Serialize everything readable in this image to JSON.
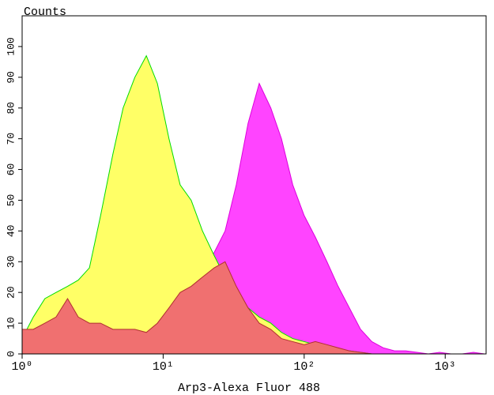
{
  "chart_data": {
    "type": "area",
    "ylabel": "Counts",
    "xlabel": "Arp3-Alexa Fluor 488",
    "xscale": "log",
    "xlim": [
      1,
      1950
    ],
    "ylim": [
      0,
      110
    ],
    "xticks": [
      {
        "value": 1,
        "label": "10⁰"
      },
      {
        "value": 10,
        "label": "10¹"
      },
      {
        "value": 100,
        "label": "10²"
      },
      {
        "value": 1000,
        "label": "10³"
      }
    ],
    "yticks": [
      0,
      10,
      20,
      30,
      40,
      50,
      60,
      70,
      80,
      90,
      100
    ],
    "x": [
      1,
      1.2,
      1.45,
      1.74,
      2.1,
      2.5,
      3,
      3.6,
      4.4,
      5.2,
      6.3,
      7.6,
      9.1,
      11,
      13.2,
      15.8,
      19,
      23,
      27.5,
      33,
      40,
      48,
      58,
      69,
      83,
      100,
      120,
      145,
      174,
      209,
      251,
      302,
      363,
      437,
      525,
      631,
      759,
      912,
      1100,
      1320,
      1585,
      1900
    ],
    "series": [
      {
        "color": "#ff44ff",
        "edgecolor": "#dd00dd",
        "values": [
          3,
          3,
          4,
          5,
          6,
          5,
          5,
          5,
          5,
          5,
          6,
          6,
          8,
          10,
          13,
          18,
          26,
          33,
          40,
          55,
          75,
          88,
          80,
          70,
          55,
          45,
          38,
          30,
          22,
          15,
          8,
          4,
          2,
          1,
          1,
          0.5,
          0,
          0.5,
          0,
          0,
          0.5,
          0
        ]
      },
      {
        "color": "#ffff66",
        "edgecolor": "#00dd00",
        "values": [
          5,
          12,
          18,
          20,
          22,
          24,
          28,
          45,
          65,
          80,
          90,
          97,
          88,
          70,
          55,
          50,
          40,
          32,
          25,
          20,
          15,
          12,
          10,
          7,
          5,
          4,
          3,
          2,
          1,
          1,
          0.5,
          0,
          0,
          0,
          0,
          0,
          0,
          0,
          0,
          0,
          0,
          0
        ]
      },
      {
        "color": "#f07070",
        "edgecolor": "#b03030",
        "values": [
          8,
          8,
          10,
          12,
          18,
          12,
          10,
          10,
          8,
          8,
          8,
          7,
          10,
          15,
          20,
          22,
          25,
          28,
          30,
          22,
          15,
          10,
          8,
          5,
          4,
          3,
          4,
          3,
          2,
          1,
          0.5,
          0,
          0,
          0,
          0,
          0,
          0,
          0,
          0,
          0,
          0,
          0
        ]
      }
    ]
  }
}
